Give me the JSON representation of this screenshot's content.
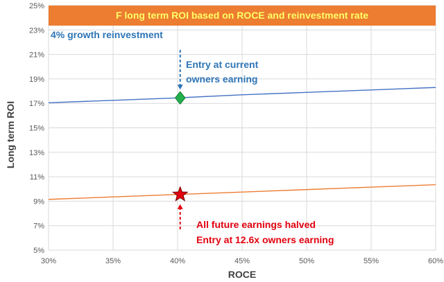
{
  "chart_data": {
    "type": "line",
    "title": "F long term ROI based on ROCE and reinvestment rate",
    "xlabel": "ROCE",
    "ylabel": "Long term ROI",
    "x": [
      0.3,
      0.35,
      0.4,
      0.45,
      0.5,
      0.55,
      0.6
    ],
    "xlim": [
      0.3,
      0.6
    ],
    "ylim": [
      0.05,
      0.25
    ],
    "x_ticks": [
      "30%",
      "35%",
      "40%",
      "45%",
      "50%",
      "55%",
      "60%"
    ],
    "y_ticks": [
      "5%",
      "7%",
      "9%",
      "11%",
      "13%",
      "15%",
      "17%",
      "19%",
      "21%",
      "23%",
      "25%"
    ],
    "grid": true,
    "series": [
      {
        "values": [
          0.1705,
          0.1725,
          0.1745,
          0.177,
          0.179,
          0.181,
          0.183
        ],
        "color": "#4472c4"
      },
      {
        "values": [
          0.0915,
          0.0935,
          0.0955,
          0.0975,
          0.0995,
          0.1015,
          0.1035
        ],
        "color": "#ed7d31"
      }
    ],
    "markers": [
      {
        "name": "current-entry-marker",
        "shape": "diamond",
        "x": 0.402,
        "y": 0.1745,
        "color": "#22b14c"
      },
      {
        "name": "halved-entry-marker",
        "shape": "star",
        "x": 0.402,
        "y": 0.0955,
        "color": "#e3000f"
      }
    ],
    "annotations": {
      "growth_label": "4% growth reinvestment",
      "current_entry": [
        "Entry at current",
        "owners earning"
      ],
      "halved_entry": [
        "All future earnings halved",
        "Entry at 12.6x owners earning"
      ]
    },
    "title_bg_color": "#ed7d31",
    "title_text_color": "#ffff66",
    "annotation_blue": "#2e75b6",
    "annotation_red": "#e3000f"
  }
}
